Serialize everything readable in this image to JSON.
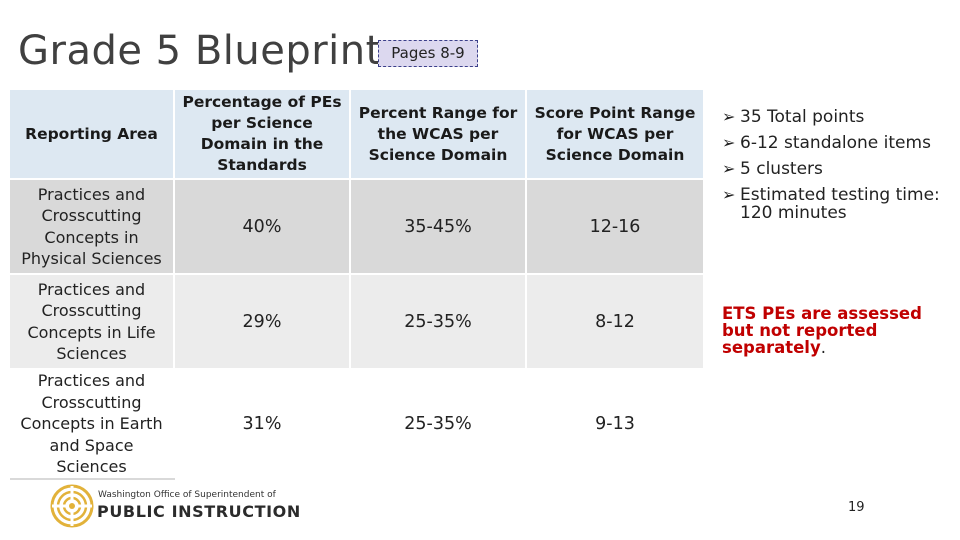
{
  "slide": {
    "title": "Grade 5 Blueprint",
    "pages_badge": "Pages 8-9",
    "page_number": "19"
  },
  "table": {
    "headers": [
      "Reporting Area",
      "Percentage of PEs per Science Domain in the Standards",
      "Percent Range for the WCAS per Science Domain",
      "Score Point Range for WCAS per Science Domain"
    ],
    "rows": [
      {
        "area": "Practices and Crosscutting Concepts in Physical Sciences",
        "percentage": "40%",
        "percent_range": "35-45%",
        "score_range": "12-16"
      },
      {
        "area": "Practices and Crosscutting Concepts in Life Sciences",
        "percentage": "29%",
        "percent_range": "25-35%",
        "score_range": "8-12"
      },
      {
        "area": "Practices and Crosscutting Concepts in Earth and Space Sciences",
        "percentage": "31%",
        "percent_range": "25-35%",
        "score_range": "9-13"
      }
    ]
  },
  "bullets": [
    "35 Total points",
    "6-12 standalone items",
    "5 clusters",
    "Estimated testing time: 120 minutes"
  ],
  "ets_note": {
    "text": "ETS PEs are assessed but not reported separately",
    "period": "."
  },
  "logo": {
    "small_text": "Washington Office of Superintendent of",
    "big_text": "PUBLIC INSTRUCTION"
  },
  "colors": {
    "header_bg": "#dde8f2",
    "row1_bg": "#d9d9d9",
    "row2_bg": "#ececec",
    "note_red": "#c00000",
    "badge_bg": "#dcd8ef",
    "logo_gold": "#e2b23a"
  }
}
